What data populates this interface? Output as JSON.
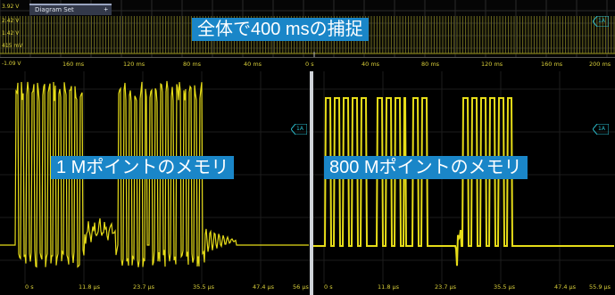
{
  "overview": {
    "tab_label": "Diagram Set",
    "tab_plus": "+",
    "y_labels": [
      "3.92 V",
      "2.42 V",
      "1.42 V",
      "415 mV",
      "-1.09 V"
    ],
    "x_labels": [
      "160 ms",
      "120 ms",
      "80 ms",
      "40 ms",
      "0 s",
      "40 ms",
      "80 ms",
      "120 ms",
      "160 ms",
      "200 ms"
    ],
    "callout": "全体で400 msの捕捉",
    "channel_marker": "1A"
  },
  "left_panel": {
    "callout": "1 Mポイントのメモリ",
    "channel_marker": "1A",
    "x_labels": [
      "0 s",
      "11.8 µs",
      "23.7 µs",
      "35.5 µs",
      "47.4 µs",
      "56 µs"
    ]
  },
  "right_panel": {
    "callout": "800 Mポイントのメモリ",
    "channel_marker": "1A",
    "x_labels": [
      "0 s",
      "11.8 µs",
      "23.7 µs",
      "35.5 µs",
      "47.4 µs",
      "55.9 µs"
    ]
  },
  "colors": {
    "trace": "#e6dc18",
    "callout_bg": "#1a86c8",
    "marker": "#2ab9c8",
    "axis_text": "#d9cf3a"
  }
}
